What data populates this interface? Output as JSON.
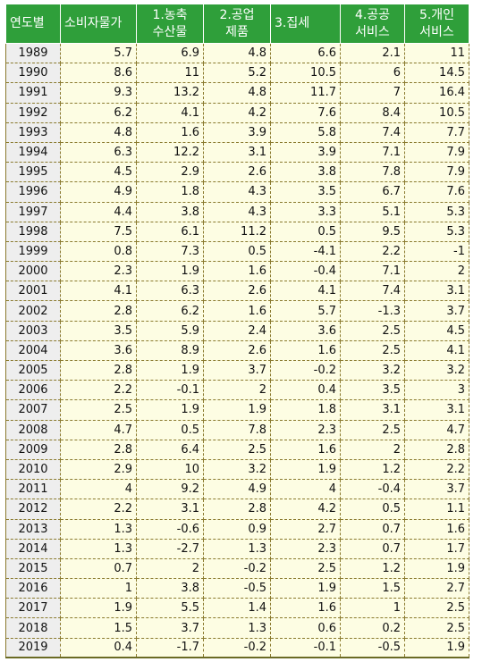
{
  "headers": [
    {
      "line1": "연도별",
      "line2": ""
    },
    {
      "line1": "소비자물가",
      "line2": ""
    },
    {
      "line1": "1.농축",
      "line2": "수산물"
    },
    {
      "line1": "2.공업",
      "line2": "제품"
    },
    {
      "line1": "3.집세",
      "line2": ""
    },
    {
      "line1": "4.공공",
      "line2": "서비스"
    },
    {
      "line1": "5.개인",
      "line2": "서비스"
    }
  ],
  "rows": [
    [
      "1989",
      "5.7",
      "6.9",
      "4.8",
      "6.6",
      "2.1",
      "11"
    ],
    [
      "1990",
      "8.6",
      "11",
      "5.2",
      "10.5",
      "6",
      "14.5"
    ],
    [
      "1991",
      "9.3",
      "13.2",
      "4.8",
      "11.7",
      "7",
      "16.4"
    ],
    [
      "1992",
      "6.2",
      "4.1",
      "4.2",
      "7.6",
      "8.4",
      "10.5"
    ],
    [
      "1993",
      "4.8",
      "1.6",
      "3.9",
      "5.8",
      "7.4",
      "7.7"
    ],
    [
      "1994",
      "6.3",
      "12.2",
      "3.1",
      "3.9",
      "7.1",
      "7.9"
    ],
    [
      "1995",
      "4.5",
      "2.9",
      "2.6",
      "3.8",
      "7.8",
      "7.9"
    ],
    [
      "1996",
      "4.9",
      "1.8",
      "4.3",
      "3.5",
      "6.7",
      "7.6"
    ],
    [
      "1997",
      "4.4",
      "3.8",
      "4.3",
      "3.3",
      "5.1",
      "5.3"
    ],
    [
      "1998",
      "7.5",
      "6.1",
      "11.2",
      "0.5",
      "9.5",
      "5.3"
    ],
    [
      "1999",
      "0.8",
      "7.3",
      "0.5",
      "-4.1",
      "2.2",
      "-1"
    ],
    [
      "2000",
      "2.3",
      "1.9",
      "1.6",
      "-0.4",
      "7.1",
      "2"
    ],
    [
      "2001",
      "4.1",
      "6.3",
      "2.6",
      "4.1",
      "7.4",
      "3.1"
    ],
    [
      "2002",
      "2.8",
      "6.2",
      "1.6",
      "5.7",
      "-1.3",
      "3.7"
    ],
    [
      "2003",
      "3.5",
      "5.9",
      "2.4",
      "3.6",
      "2.5",
      "4.5"
    ],
    [
      "2004",
      "3.6",
      "8.9",
      "2.6",
      "1.6",
      "2.5",
      "4.1"
    ],
    [
      "2005",
      "2.8",
      "1.9",
      "3.7",
      "-0.2",
      "3.2",
      "3.2"
    ],
    [
      "2006",
      "2.2",
      "-0.1",
      "2",
      "0.4",
      "3.5",
      "3"
    ],
    [
      "2007",
      "2.5",
      "1.9",
      "1.9",
      "1.8",
      "3.1",
      "3.1"
    ],
    [
      "2008",
      "4.7",
      "0.5",
      "7.8",
      "2.3",
      "2.5",
      "4.7"
    ],
    [
      "2009",
      "2.8",
      "6.4",
      "2.5",
      "1.6",
      "2",
      "2.8"
    ],
    [
      "2010",
      "2.9",
      "10",
      "3.2",
      "1.9",
      "1.2",
      "2.2"
    ],
    [
      "2011",
      "4",
      "9.2",
      "4.9",
      "4",
      "-0.4",
      "3.7"
    ],
    [
      "2012",
      "2.2",
      "3.1",
      "2.8",
      "4.2",
      "0.5",
      "1.1"
    ],
    [
      "2013",
      "1.3",
      "-0.6",
      "0.9",
      "2.7",
      "0.7",
      "1.6"
    ],
    [
      "2014",
      "1.3",
      "-2.7",
      "1.3",
      "2.3",
      "0.7",
      "1.7"
    ],
    [
      "2015",
      "0.7",
      "2",
      "-0.2",
      "2.5",
      "1.2",
      "1.9"
    ],
    [
      "2016",
      "1",
      "3.8",
      "-0.5",
      "1.9",
      "1.5",
      "2.7"
    ],
    [
      "2017",
      "1.9",
      "5.5",
      "1.4",
      "1.6",
      "1",
      "2.5"
    ],
    [
      "2018",
      "1.5",
      "3.7",
      "1.3",
      "0.6",
      "0.2",
      "2.5"
    ],
    [
      "2019",
      "0.4",
      "-1.7",
      "-0.2",
      "-0.1",
      "-0.5",
      "1.9"
    ]
  ]
}
